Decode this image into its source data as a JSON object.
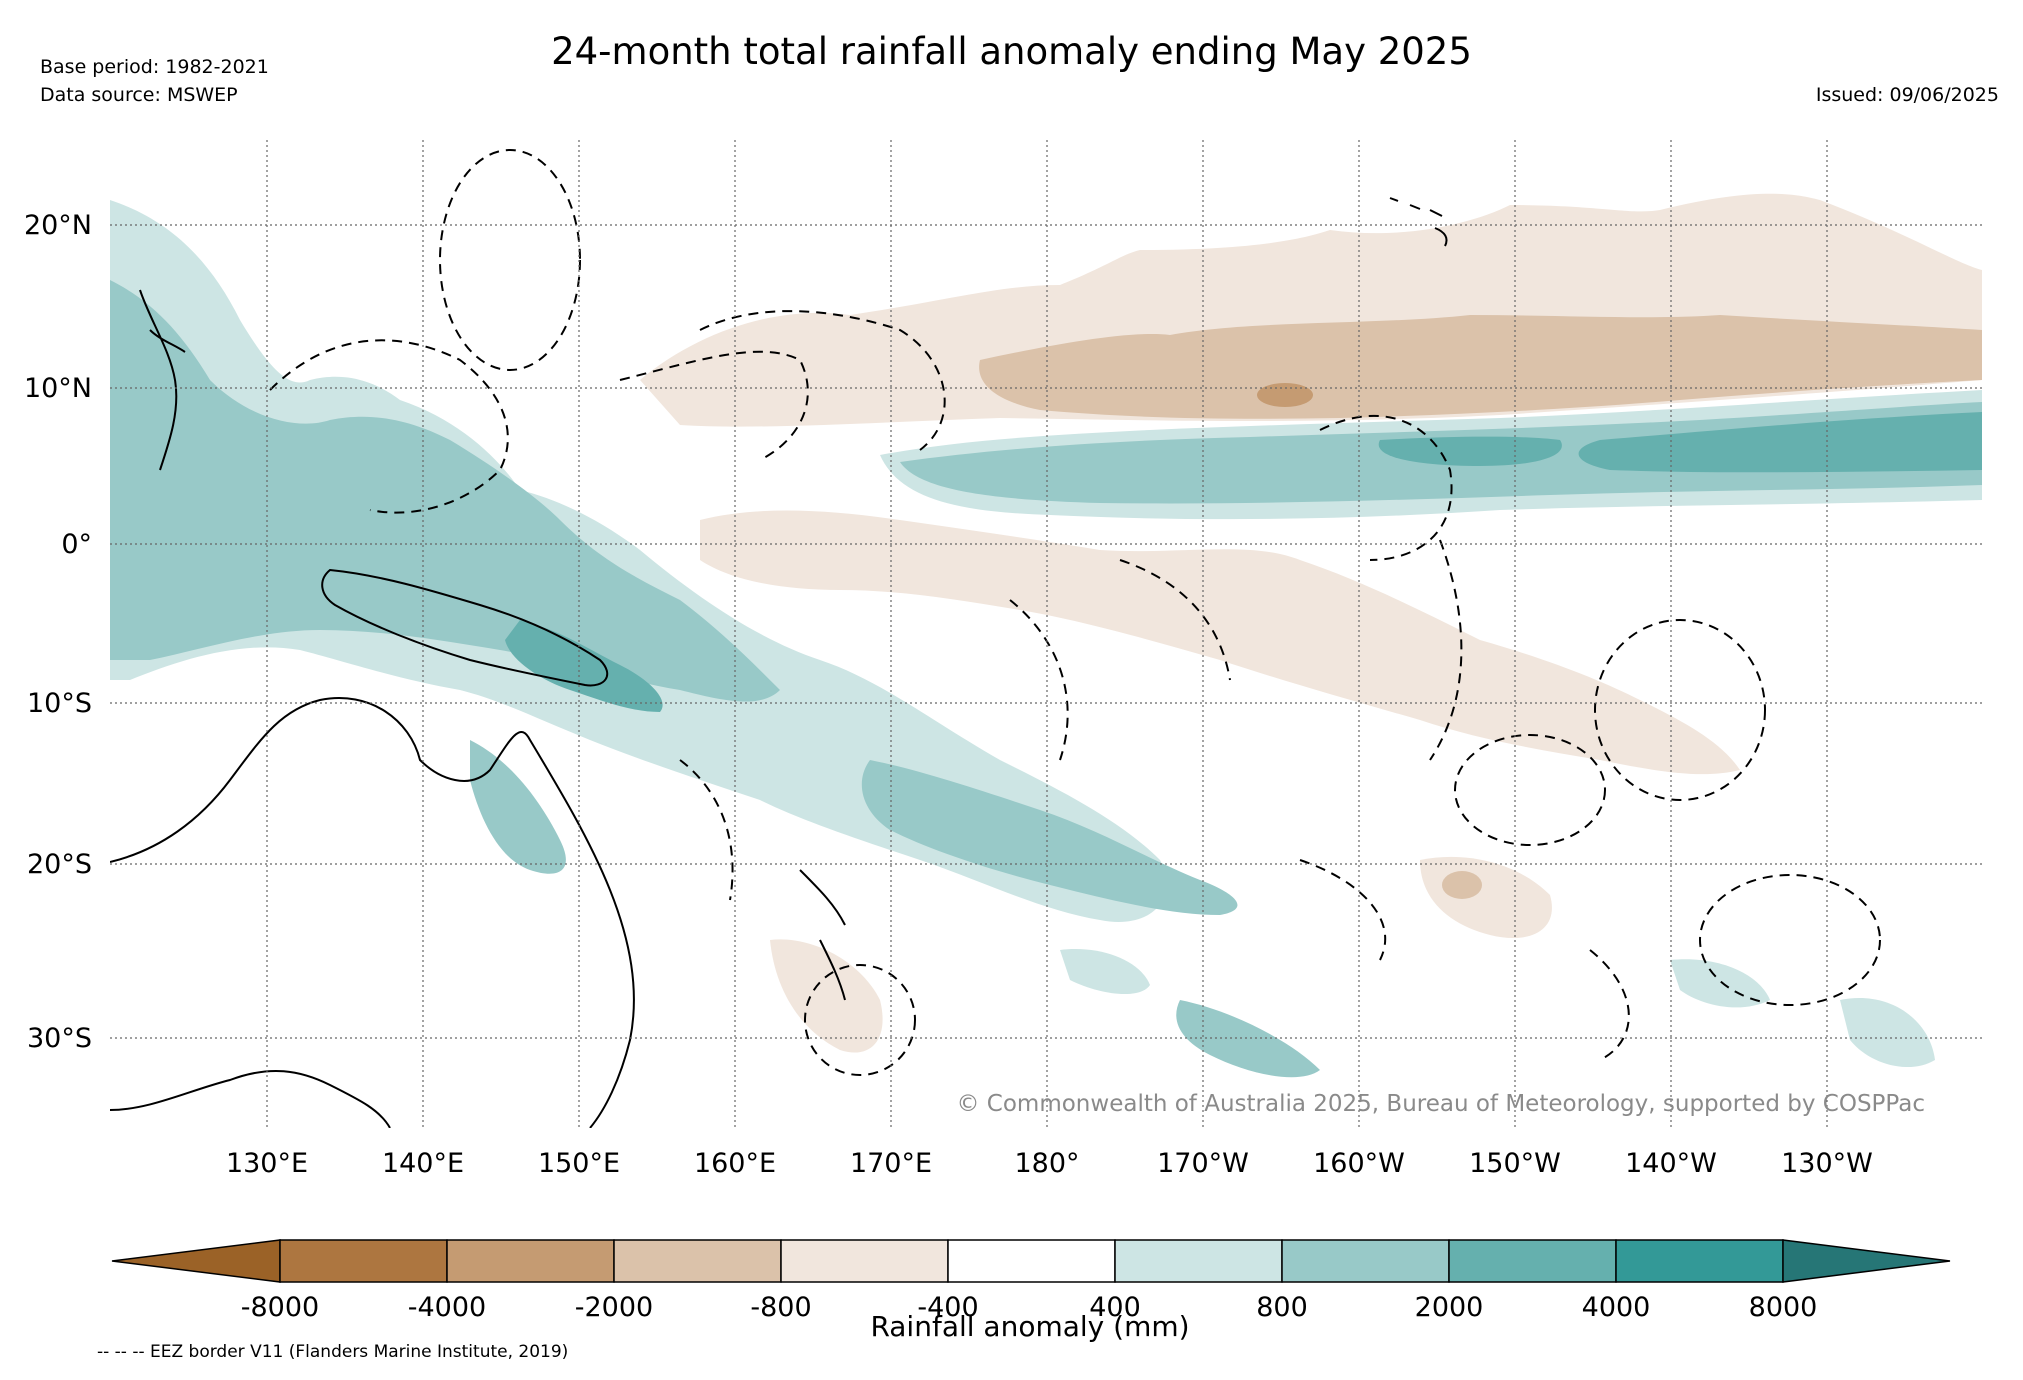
{
  "header": {
    "title": "24-month total rainfall anomaly ending May 2025",
    "base_period": "Base period: 1982-2021",
    "data_source": "Data source: MSWEP",
    "issued": "Issued: 09/06/2025"
  },
  "map": {
    "lat_labels": [
      "20°N",
      "10°N",
      "0°",
      "10°S",
      "20°S",
      "30°S"
    ],
    "lon_labels": [
      "130°E",
      "140°E",
      "150°E",
      "160°E",
      "170°E",
      "180°",
      "170°W",
      "160°W",
      "150°W",
      "140°W",
      "130°W"
    ],
    "credit": "© Commonwealth of Australia 2025, Bureau of Meteorology, supported by COSPPac",
    "regions": [
      {
        "name": "north-pacific-dry-band",
        "category": "-800 to -400"
      },
      {
        "name": "north-pacific-dry-core",
        "category": "-2000 to -800"
      },
      {
        "name": "itcz-wet-band",
        "category": "800 to 2000"
      },
      {
        "name": "itcz-wet-core",
        "category": "2000 to 4000"
      },
      {
        "name": "west-pacific-wet",
        "category": "800 to 2000"
      },
      {
        "name": "solomon-sea-wet",
        "category": "2000 to 4000"
      },
      {
        "name": "south-pacific-convergence-wet",
        "category": "800 to 2000"
      },
      {
        "name": "central-south-pacific-dry",
        "category": "-800 to -400"
      }
    ]
  },
  "colorbar": {
    "label": "Rainfall anomaly (mm)",
    "ticks": [
      "-8000",
      "-4000",
      "-2000",
      "-800",
      "-400",
      "400",
      "800",
      "2000",
      "4000",
      "8000"
    ],
    "colors": [
      "#9b6227",
      "#ad7640",
      "#c59b72",
      "#dbc2aa",
      "#f1e6dd",
      "#ffffff",
      "#cde5e4",
      "#98c9c8",
      "#65b0ae",
      "#339997",
      "#267676"
    ]
  },
  "legend": {
    "eez_note": "-- -- -- EEZ border V11 (Flanders Marine Institute, 2019)"
  }
}
